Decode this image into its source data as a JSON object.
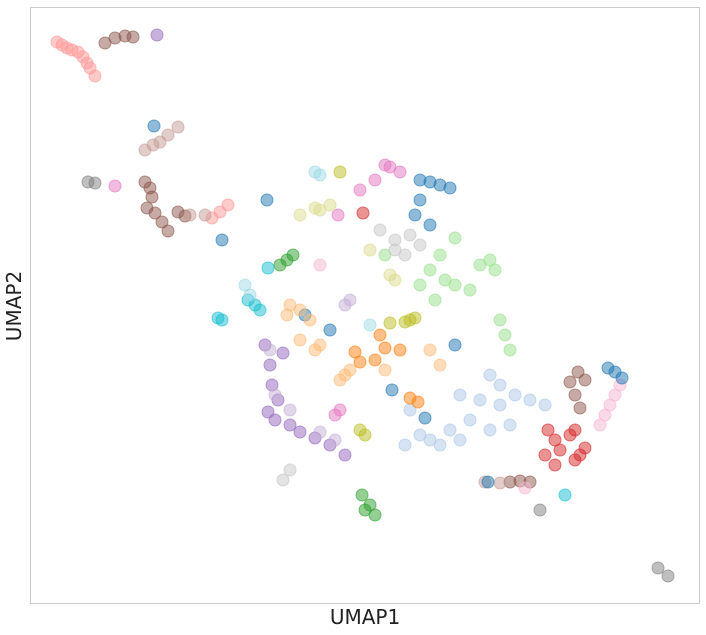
{
  "chart_data": {
    "type": "scatter",
    "x_label": "UMAP1",
    "y_label": "UMAP2",
    "xlim": [
      0,
      67
    ],
    "ylim": [
      0,
      59.7
    ],
    "grid": false,
    "series": [
      {
        "color": "#ff9896",
        "x": [
          2.7,
          3.2,
          3.7,
          4.2,
          4.8,
          5.3,
          5.7,
          6.0,
          6.5,
          18.2,
          19.0,
          19.8
        ],
        "values": [
          56.2,
          55.9,
          55.6,
          55.4,
          55.2,
          54.7,
          54.1,
          53.6,
          52.8,
          38.6,
          39.2,
          39.9
        ]
      },
      {
        "color": "#8c564b",
        "x": [
          7.5,
          8.5,
          9.5,
          10.3,
          11.5,
          12.0,
          12.2,
          11.7,
          12.5,
          13.2,
          13.8,
          14.8,
          15.5,
          54.8,
          55.5,
          54.5,
          55.0,
          54.0,
          48.0,
          49.0,
          50.0
        ],
        "values": [
          56.1,
          56.6,
          56.8,
          56.7,
          42.2,
          41.6,
          40.7,
          39.6,
          39.1,
          38.2,
          37.3,
          39.2,
          38.8,
          23.2,
          22.4,
          20.9,
          19.6,
          22.2,
          12.2,
          12.3,
          12.2
        ]
      },
      {
        "color": "#9467bd",
        "x": [
          12.7,
          23.5,
          25.3,
          24.0,
          24.2,
          24.8,
          23.8,
          24.5,
          26.0,
          27.0,
          28.5,
          30.0,
          31.5
        ],
        "values": [
          56.9,
          25.9,
          25.1,
          23.9,
          21.9,
          20.4,
          19.2,
          18.4,
          17.9,
          17.2,
          16.6,
          15.9,
          14.9
        ]
      },
      {
        "color": "#c49c94",
        "x": [
          12.3,
          13.0,
          13.8,
          14.8,
          11.5,
          17.5,
          16.0,
          45.5,
          47.0
        ],
        "values": [
          45.9,
          46.2,
          46.9,
          47.7,
          45.4,
          38.9,
          38.9,
          12.2,
          12.1
        ]
      },
      {
        "color": "#7f7f7f",
        "x": [
          5.8,
          6.5,
          51.0,
          62.8,
          63.8
        ],
        "values": [
          42.2,
          42.1,
          9.4,
          3.6,
          2.8
        ]
      },
      {
        "color": "#e377c2",
        "x": [
          8.5,
          30.8,
          33.0,
          34.5,
          36.0,
          37.0,
          35.5,
          31.0,
          30.5
        ],
        "values": [
          41.8,
          38.9,
          41.4,
          42.4,
          43.7,
          43.2,
          43.9,
          19.4,
          18.9
        ]
      },
      {
        "color": "#f7b6d2",
        "x": [
          29.0,
          57.0,
          57.5,
          58.0,
          58.5,
          59.0,
          49.5
        ],
        "values": [
          33.9,
          17.9,
          18.9,
          19.9,
          20.9,
          21.9,
          11.6
        ]
      },
      {
        "color": "#1f77b4",
        "x": [
          12.4,
          23.7,
          19.2,
          27.5,
          30.0,
          42.5,
          36.2,
          39.5,
          45.8,
          39.0,
          40.0,
          41.0,
          42.0,
          39.0,
          38.5,
          40.0,
          57.8,
          58.5,
          59.2
        ],
        "values": [
          47.8,
          40.4,
          36.4,
          28.9,
          27.4,
          25.9,
          21.4,
          18.6,
          12.2,
          42.4,
          42.2,
          41.9,
          41.6,
          40.4,
          38.9,
          37.9,
          23.6,
          23.2,
          22.6
        ]
      },
      {
        "color": "#aec7e8",
        "x": [
          46.0,
          47.0,
          43.0,
          45.0,
          47.0,
          48.5,
          50.0,
          51.5,
          44.0,
          46.0,
          48.0,
          39.0,
          41.0,
          40.0,
          42.0,
          43.0,
          38.0,
          37.5
        ],
        "values": [
          22.9,
          21.9,
          20.9,
          20.4,
          19.9,
          20.9,
          20.4,
          19.9,
          18.4,
          17.4,
          17.9,
          16.9,
          15.9,
          16.4,
          17.4,
          16.4,
          19.4,
          15.9
        ]
      },
      {
        "color": "#2ca02c",
        "x": [
          25.0,
          25.7,
          26.3,
          33.2,
          34.0,
          34.5,
          33.5
        ],
        "values": [
          33.9,
          34.4,
          34.9,
          10.9,
          9.9,
          8.9,
          9.4
        ]
      },
      {
        "color": "#98df8a",
        "x": [
          42.5,
          41.0,
          40.0,
          41.5,
          39.0,
          40.5,
          42.5,
          44.0,
          46.0,
          46.5,
          45.0,
          47.0,
          47.5,
          48.0,
          35.5
        ],
        "values": [
          36.6,
          34.9,
          33.4,
          32.4,
          31.9,
          30.4,
          31.9,
          31.4,
          34.4,
          33.4,
          33.9,
          28.4,
          26.9,
          25.4,
          34.9
        ]
      },
      {
        "color": "#17becf",
        "x": [
          18.8,
          19.2,
          21.8,
          22.5,
          23.0,
          23.8,
          53.5
        ],
        "values": [
          28.6,
          28.4,
          30.4,
          29.9,
          29.4,
          33.6,
          10.9
        ]
      },
      {
        "color": "#9edae5",
        "x": [
          28.5,
          29.0,
          21.5,
          22.0,
          34.0
        ],
        "values": [
          43.2,
          42.9,
          31.9,
          30.9,
          27.9
        ]
      },
      {
        "color": "#bcbd22",
        "x": [
          31.0,
          38.0,
          37.5,
          38.5,
          33.0,
          33.5,
          36.0
        ],
        "values": [
          43.2,
          28.4,
          28.2,
          28.6,
          17.4,
          16.9,
          28.1
        ]
      },
      {
        "color": "#dbdb8d",
        "x": [
          30.0,
          28.5,
          29.0,
          27.0,
          36.0,
          36.5,
          34.0
        ],
        "values": [
          39.9,
          39.6,
          39.4,
          38.9,
          32.9,
          32.4,
          35.4
        ]
      },
      {
        "color": "#ff7f0e",
        "x": [
          32.5,
          34.5,
          35.5,
          37.0,
          38.0,
          38.8,
          35.0,
          33.0
        ],
        "values": [
          25.2,
          24.4,
          25.6,
          25.4,
          20.6,
          20.2,
          26.9,
          24.2
        ]
      },
      {
        "color": "#ffbb78",
        "x": [
          26.0,
          27.0,
          25.7,
          28.0,
          29.0,
          28.5,
          31.5,
          32.0,
          31.0,
          40.0,
          41.0,
          35.5,
          27.0
        ],
        "values": [
          29.9,
          29.4,
          28.9,
          28.4,
          25.9,
          25.4,
          22.9,
          23.4,
          22.4,
          25.4,
          23.9,
          23.4,
          26.4
        ]
      },
      {
        "color": "#d62728",
        "x": [
          33.3,
          51.8,
          52.5,
          53.0,
          54.0,
          54.5,
          55.0,
          54.5,
          52.5,
          51.5,
          55.5
        ],
        "values": [
          39.1,
          17.4,
          16.4,
          15.4,
          16.9,
          17.4,
          14.9,
          14.4,
          13.9,
          14.9,
          15.6
        ]
      },
      {
        "color": "#c7c7c7",
        "x": [
          35.0,
          36.5,
          38.0,
          39.0,
          37.5,
          36.5,
          26.0,
          25.3
        ],
        "values": [
          37.4,
          36.4,
          36.9,
          35.9,
          34.9,
          35.4,
          13.4,
          12.4
        ]
      },
      {
        "color": "#c5b0d5",
        "x": [
          32.0,
          31.5,
          24.0,
          24.5,
          26.0,
          29.0,
          30.5
        ],
        "values": [
          30.4,
          29.9,
          25.4,
          20.9,
          19.4,
          17.2,
          16.4
        ]
      }
    ]
  }
}
